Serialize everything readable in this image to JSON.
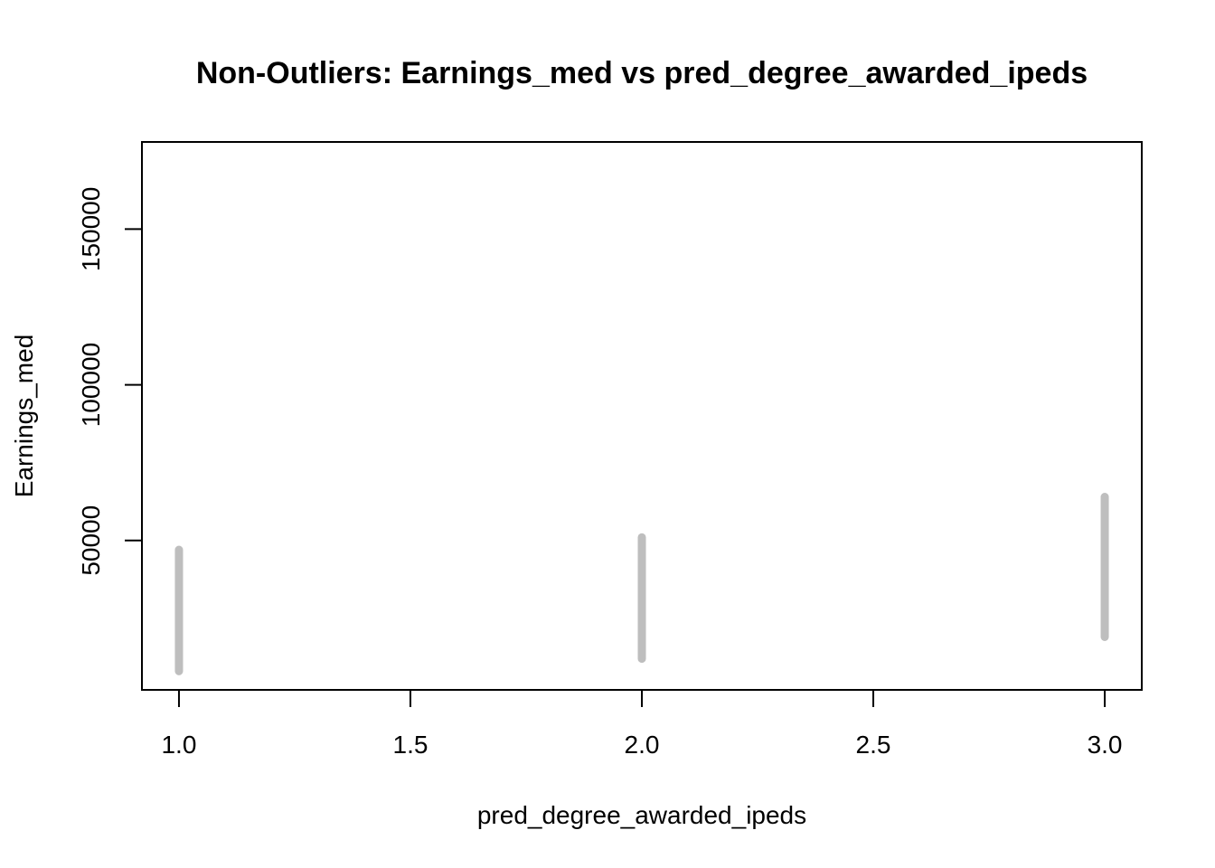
{
  "chart_data": {
    "type": "scatter",
    "title": "Non-Outliers: Earnings_med vs pred_degree_awarded_ipeds",
    "xlabel": "pred_degree_awarded_ipeds",
    "ylabel": "Earnings_med",
    "xlim": [
      0.92,
      3.08
    ],
    "ylim": [
      2000,
      178000
    ],
    "x_ticks": [
      {
        "value": 1.0,
        "label": "1.0"
      },
      {
        "value": 1.5,
        "label": "1.5"
      },
      {
        "value": 2.0,
        "label": "2.0"
      },
      {
        "value": 2.5,
        "label": "2.5"
      },
      {
        "value": 3.0,
        "label": "3.0"
      }
    ],
    "y_ticks": [
      {
        "value": 50000,
        "label": "50000"
      },
      {
        "value": 100000,
        "label": "100000"
      },
      {
        "value": 150000,
        "label": "150000"
      }
    ],
    "grid": false,
    "legend": "none",
    "point_color": "#BEBEBE",
    "series": [
      {
        "points": [
          {
            "x": 1,
            "y_min": 8000,
            "y_max": 47000
          },
          {
            "x": 2,
            "y_min": 12000,
            "y_max": 51000
          },
          {
            "x": 3,
            "y_min": 19000,
            "y_max": 64000
          }
        ]
      }
    ]
  }
}
